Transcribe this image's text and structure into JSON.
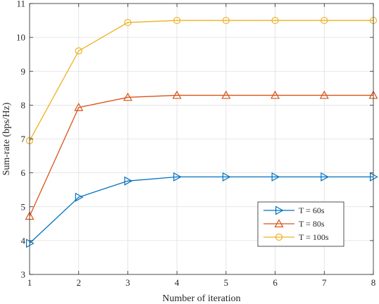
{
  "chart_data": {
    "type": "line",
    "title": "",
    "xlabel": "Number of iteration",
    "ylabel": "Sum-rate (bps/Hz)",
    "x": [
      1,
      2,
      3,
      4,
      5,
      6,
      7,
      8
    ],
    "xlim": [
      1,
      8
    ],
    "ylim": [
      3,
      11
    ],
    "xticks": [
      "1",
      "2",
      "3",
      "4",
      "5",
      "6",
      "7",
      "8"
    ],
    "yticks": [
      "3",
      "4",
      "5",
      "6",
      "7",
      "8",
      "9",
      "10",
      "11"
    ],
    "grid": true,
    "legend_position": "bottom-right",
    "series": [
      {
        "name": "T = 60s",
        "color": "#0072BD",
        "marker": "triangle-right",
        "values": [
          3.92,
          5.28,
          5.76,
          5.88,
          5.88,
          5.88,
          5.88,
          5.88
        ]
      },
      {
        "name": "T = 80s",
        "color": "#D95319",
        "marker": "triangle-up",
        "values": [
          4.72,
          7.93,
          8.23,
          8.29,
          8.29,
          8.29,
          8.29,
          8.29
        ]
      },
      {
        "name": "T = 100s",
        "color": "#EDB120",
        "marker": "circle",
        "values": [
          6.95,
          9.6,
          10.44,
          10.5,
          10.5,
          10.5,
          10.5,
          10.5
        ]
      }
    ]
  }
}
